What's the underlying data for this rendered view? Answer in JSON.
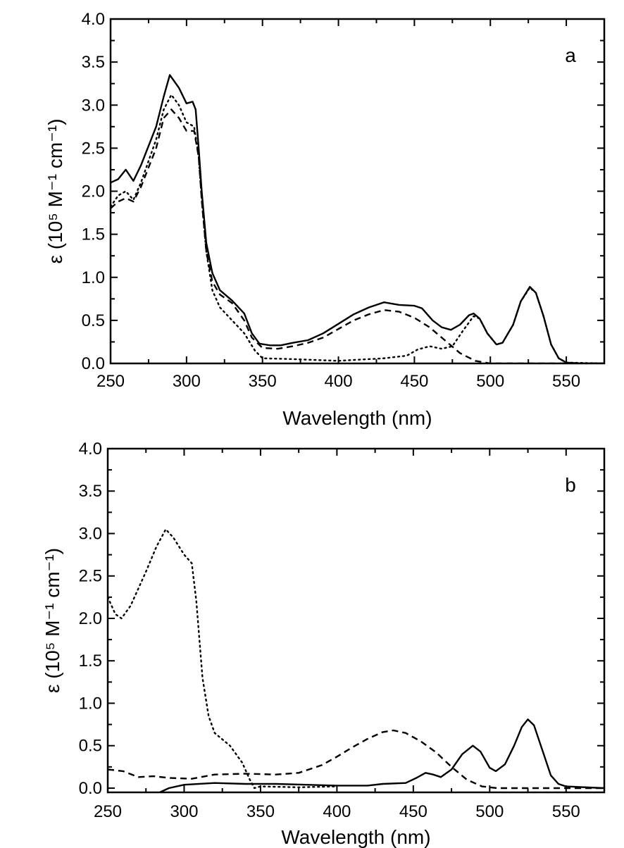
{
  "chart_data": [
    {
      "type": "line",
      "panel_label": "a",
      "xlabel": "Wavelength (nm)",
      "ylabel": "ε (10⁵ M⁻¹ cm⁻¹)",
      "xlim": [
        250,
        575
      ],
      "ylim": [
        0,
        4.0
      ],
      "xticks": [
        "250",
        "300",
        "350",
        "400",
        "450",
        "500",
        "550"
      ],
      "yticks": [
        "0.0",
        "0.5",
        "1.0",
        "1.5",
        "2.0",
        "2.5",
        "3.0",
        "3.5",
        "4.0"
      ],
      "grid": false,
      "series": [
        {
          "style": "solid",
          "points": [
            [
              250,
              2.1
            ],
            [
              255,
              2.14
            ],
            [
              260,
              2.25
            ],
            [
              265,
              2.12
            ],
            [
              270,
              2.3
            ],
            [
              280,
              2.75
            ],
            [
              285,
              3.1
            ],
            [
              289,
              3.35
            ],
            [
              295,
              3.2
            ],
            [
              300,
              3.02
            ],
            [
              304,
              3.04
            ],
            [
              306,
              2.95
            ],
            [
              308,
              2.5
            ],
            [
              310,
              2.0
            ],
            [
              313,
              1.4
            ],
            [
              317,
              1.05
            ],
            [
              322,
              0.85
            ],
            [
              330,
              0.73
            ],
            [
              338,
              0.58
            ],
            [
              343,
              0.35
            ],
            [
              348,
              0.23
            ],
            [
              355,
              0.21
            ],
            [
              362,
              0.21
            ],
            [
              370,
              0.24
            ],
            [
              380,
              0.27
            ],
            [
              390,
              0.35
            ],
            [
              400,
              0.46
            ],
            [
              410,
              0.57
            ],
            [
              420,
              0.65
            ],
            [
              430,
              0.71
            ],
            [
              440,
              0.68
            ],
            [
              450,
              0.67
            ],
            [
              455,
              0.64
            ],
            [
              462,
              0.5
            ],
            [
              468,
              0.42
            ],
            [
              474,
              0.39
            ],
            [
              480,
              0.45
            ],
            [
              486,
              0.56
            ],
            [
              489,
              0.58
            ],
            [
              493,
              0.52
            ],
            [
              498,
              0.35
            ],
            [
              504,
              0.22
            ],
            [
              508,
              0.24
            ],
            [
              515,
              0.45
            ],
            [
              520,
              0.72
            ],
            [
              526,
              0.89
            ],
            [
              530,
              0.82
            ],
            [
              535,
              0.55
            ],
            [
              540,
              0.22
            ],
            [
              545,
              0.06
            ],
            [
              550,
              0.01
            ],
            [
              560,
              0
            ],
            [
              575,
              0
            ]
          ]
        },
        {
          "style": "dashed",
          "points": [
            [
              250,
              1.8
            ],
            [
              255,
              1.88
            ],
            [
              260,
              1.92
            ],
            [
              265,
              1.88
            ],
            [
              270,
              2.05
            ],
            [
              280,
              2.5
            ],
            [
              285,
              2.85
            ],
            [
              290,
              2.95
            ],
            [
              295,
              2.85
            ],
            [
              300,
              2.7
            ],
            [
              305,
              2.7
            ],
            [
              308,
              2.4
            ],
            [
              310,
              1.9
            ],
            [
              313,
              1.3
            ],
            [
              317,
              0.95
            ],
            [
              322,
              0.8
            ],
            [
              330,
              0.7
            ],
            [
              338,
              0.5
            ],
            [
              343,
              0.3
            ],
            [
              350,
              0.18
            ],
            [
              360,
              0.17
            ],
            [
              370,
              0.2
            ],
            [
              380,
              0.24
            ],
            [
              390,
              0.3
            ],
            [
              400,
              0.4
            ],
            [
              410,
              0.5
            ],
            [
              420,
              0.57
            ],
            [
              430,
              0.62
            ],
            [
              440,
              0.6
            ],
            [
              450,
              0.53
            ],
            [
              460,
              0.42
            ],
            [
              470,
              0.27
            ],
            [
              480,
              0.12
            ],
            [
              490,
              0.03
            ],
            [
              500,
              0.0
            ],
            [
              575,
              0
            ]
          ]
        },
        {
          "style": "dotted",
          "points": [
            [
              250,
              1.82
            ],
            [
              255,
              1.95
            ],
            [
              260,
              2.0
            ],
            [
              265,
              1.9
            ],
            [
              270,
              2.1
            ],
            [
              280,
              2.6
            ],
            [
              285,
              2.95
            ],
            [
              290,
              3.12
            ],
            [
              295,
              3.0
            ],
            [
              300,
              2.8
            ],
            [
              305,
              2.75
            ],
            [
              308,
              2.4
            ],
            [
              310,
              1.9
            ],
            [
              313,
              1.3
            ],
            [
              317,
              0.85
            ],
            [
              322,
              0.65
            ],
            [
              330,
              0.5
            ],
            [
              338,
              0.35
            ],
            [
              345,
              0.15
            ],
            [
              350,
              0.06
            ],
            [
              370,
              0.05
            ],
            [
              400,
              0.03
            ],
            [
              430,
              0.06
            ],
            [
              445,
              0.09
            ],
            [
              452,
              0.16
            ],
            [
              460,
              0.2
            ],
            [
              468,
              0.17
            ],
            [
              475,
              0.2
            ],
            [
              482,
              0.38
            ],
            [
              489,
              0.55
            ],
            [
              493,
              0.52
            ],
            [
              498,
              0.35
            ],
            [
              504,
              0.22
            ],
            [
              508,
              0.24
            ],
            [
              515,
              0.45
            ],
            [
              520,
              0.72
            ],
            [
              526,
              0.88
            ],
            [
              530,
              0.82
            ],
            [
              535,
              0.55
            ],
            [
              540,
              0.22
            ],
            [
              545,
              0.06
            ],
            [
              550,
              0.01
            ],
            [
              575,
              0
            ]
          ]
        }
      ]
    },
    {
      "type": "line",
      "panel_label": "b",
      "xlabel": "Wavelength (nm)",
      "ylabel": "ε (10⁵ M⁻¹ cm⁻¹)",
      "xlim": [
        250,
        575
      ],
      "ylim": [
        -0.05,
        4.0
      ],
      "xticks": [
        "250",
        "300",
        "350",
        "400",
        "450",
        "500",
        "550"
      ],
      "yticks": [
        "0.0",
        "0.5",
        "1.0",
        "1.5",
        "2.0",
        "2.5",
        "3.0",
        "3.5",
        "4.0"
      ],
      "grid": false,
      "series": [
        {
          "style": "solid",
          "points": [
            [
              284,
              -0.05
            ],
            [
              290,
              0.0
            ],
            [
              300,
              0.04
            ],
            [
              320,
              0.06
            ],
            [
              340,
              0.05
            ],
            [
              360,
              0.05
            ],
            [
              380,
              0.04
            ],
            [
              400,
              0.03
            ],
            [
              420,
              0.03
            ],
            [
              430,
              0.05
            ],
            [
              445,
              0.06
            ],
            [
              452,
              0.12
            ],
            [
              458,
              0.18
            ],
            [
              463,
              0.16
            ],
            [
              468,
              0.13
            ],
            [
              475,
              0.22
            ],
            [
              482,
              0.4
            ],
            [
              489,
              0.5
            ],
            [
              494,
              0.43
            ],
            [
              500,
              0.24
            ],
            [
              504,
              0.2
            ],
            [
              510,
              0.28
            ],
            [
              516,
              0.5
            ],
            [
              521,
              0.72
            ],
            [
              525,
              0.81
            ],
            [
              529,
              0.74
            ],
            [
              535,
              0.42
            ],
            [
              540,
              0.15
            ],
            [
              545,
              0.05
            ],
            [
              550,
              0.02
            ],
            [
              575,
              0.0
            ]
          ]
        },
        {
          "style": "dashed",
          "points": [
            [
              250,
              0.22
            ],
            [
              260,
              0.2
            ],
            [
              270,
              0.13
            ],
            [
              280,
              0.14
            ],
            [
              290,
              0.12
            ],
            [
              305,
              0.11
            ],
            [
              320,
              0.16
            ],
            [
              340,
              0.17
            ],
            [
              360,
              0.16
            ],
            [
              375,
              0.18
            ],
            [
              390,
              0.27
            ],
            [
              400,
              0.37
            ],
            [
              410,
              0.48
            ],
            [
              420,
              0.58
            ],
            [
              430,
              0.66
            ],
            [
              437,
              0.68
            ],
            [
              445,
              0.65
            ],
            [
              455,
              0.55
            ],
            [
              465,
              0.42
            ],
            [
              475,
              0.25
            ],
            [
              485,
              0.1
            ],
            [
              495,
              0.02
            ],
            [
              505,
              0.0
            ],
            [
              575,
              0
            ]
          ]
        },
        {
          "style": "dotted",
          "points": [
            [
              250,
              2.25
            ],
            [
              255,
              2.05
            ],
            [
              259,
              2.0
            ],
            [
              265,
              2.15
            ],
            [
              275,
              2.55
            ],
            [
              282,
              2.85
            ],
            [
              288,
              3.05
            ],
            [
              293,
              2.95
            ],
            [
              300,
              2.75
            ],
            [
              305,
              2.65
            ],
            [
              308,
              2.2
            ],
            [
              312,
              1.3
            ],
            [
              316,
              0.85
            ],
            [
              320,
              0.65
            ],
            [
              330,
              0.5
            ],
            [
              338,
              0.3
            ],
            [
              343,
              0.1
            ],
            [
              346,
              0.0
            ],
            [
              350,
              0.02
            ],
            [
              375,
              0.01
            ],
            [
              400,
              0.02
            ]
          ]
        }
      ]
    }
  ]
}
